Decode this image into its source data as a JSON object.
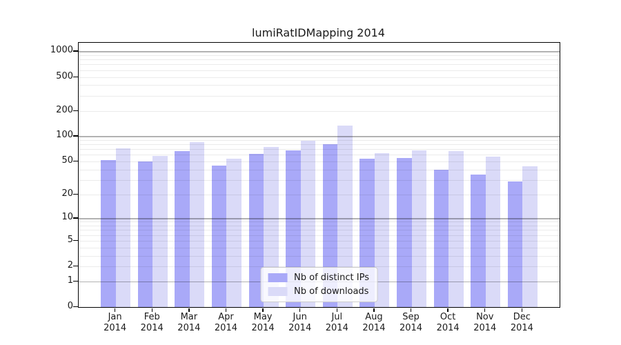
{
  "title": "lumiRatIDMapping 2014",
  "chart_data": {
    "type": "bar",
    "title": "lumiRatIDMapping 2014",
    "x_year": "2014",
    "categories": [
      "Jan",
      "Feb",
      "Mar",
      "Apr",
      "May",
      "Jun",
      "Jul",
      "Aug",
      "Sep",
      "Oct",
      "Nov",
      "Dec"
    ],
    "series": [
      {
        "name": "Nb of distinct IPs",
        "color": "#a9a9f8",
        "values": [
          52,
          50,
          66,
          45,
          62,
          68,
          81,
          54,
          55,
          40,
          35,
          29
        ]
      },
      {
        "name": "Nb of downloads",
        "color": "#dadaf8",
        "values": [
          72,
          58,
          85,
          54,
          75,
          88,
          133,
          63,
          68,
          66,
          57,
          44
        ]
      }
    ],
    "yscale": "log1p",
    "yticks": [
      0,
      1,
      2,
      5,
      10,
      20,
      50,
      100,
      200,
      500,
      1000
    ],
    "ytick_labels": [
      "0",
      "1",
      "2",
      "5",
      "10",
      "20",
      "50",
      "100",
      "200",
      "500",
      "1000"
    ],
    "ylim": [
      0,
      1260
    ],
    "grid": {
      "major_at": [
        1,
        10,
        100,
        1000
      ],
      "major_color": "rgba(0,0,0,0.30)",
      "minor_color": "rgba(0,0,0,0.08)"
    },
    "legend_position": "lower center",
    "background_color": "#ffffff"
  }
}
